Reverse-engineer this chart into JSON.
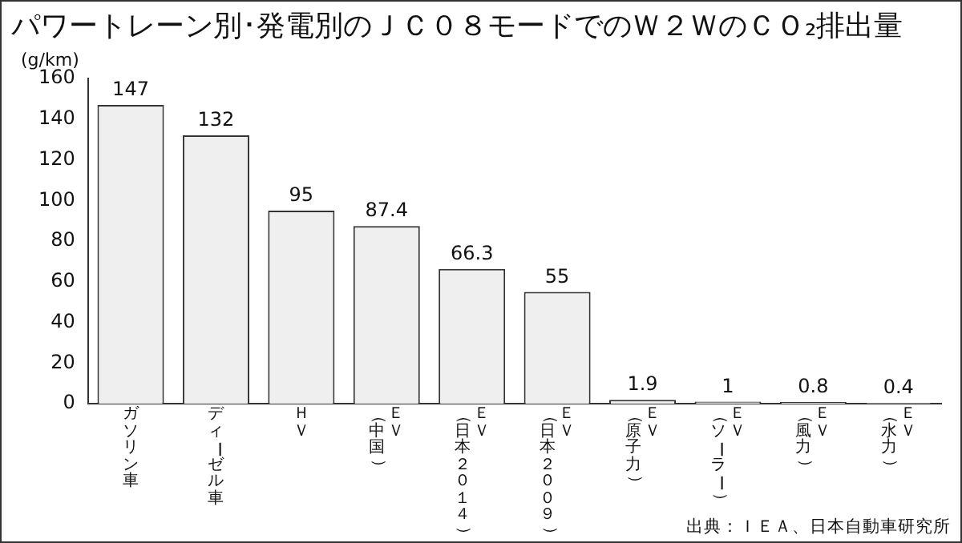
{
  "chart_data": {
    "type": "bar",
    "title": "パワートレーン別･発電別のＪＣ０８モードでのＷ２ＷのＣＯ₂排出量",
    "ylabel": "(g/km)",
    "categories": [
      "ガソリン車",
      "ディーゼル車",
      "ＨＶ",
      "ＥＶ（中国）",
      "ＥＶ（日本２０１４）",
      "ＥＶ（日本２００９）",
      "ＥＶ（原子力）",
      "ＥＶ（ソーラー）",
      "ＥＶ（風力）",
      "ＥＶ（水力）"
    ],
    "values": [
      147,
      132,
      95,
      87.4,
      66.3,
      55,
      1.9,
      1,
      0.8,
      0.4
    ],
    "color": "#efefef",
    "ylim": [
      0,
      160
    ],
    "yticks": [
      0,
      20,
      40,
      60,
      80,
      100,
      120,
      140,
      160
    ],
    "grid": false,
    "legend": false,
    "data_labels": true,
    "annotations": [
      "出典：ＩＥＡ、日本自動車研究所"
    ]
  }
}
